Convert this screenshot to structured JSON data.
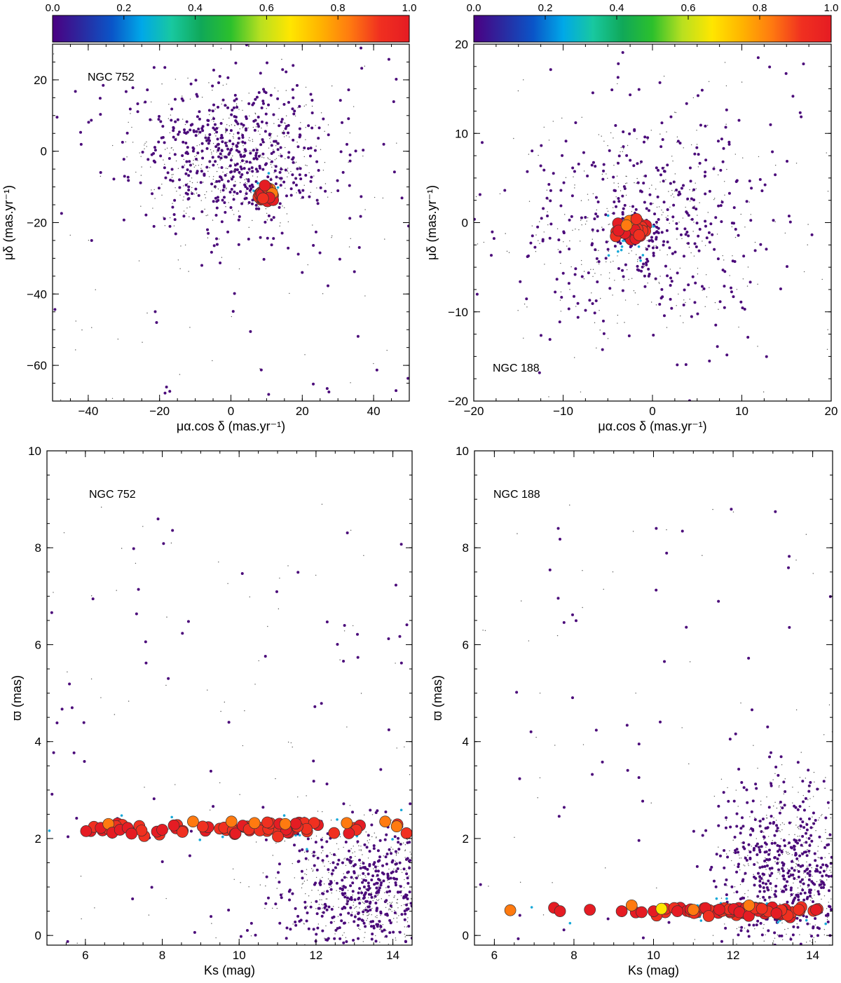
{
  "figure": {
    "colorbar": {
      "ticks": [
        "0.0",
        "0.2",
        "0.4",
        "0.6",
        "0.8",
        "1.0"
      ],
      "tick_values": [
        0.0,
        0.2,
        0.4,
        0.6,
        0.8,
        1.0
      ],
      "colors": [
        "#4b0082",
        "#2a2aa0",
        "#0a55c8",
        "#00a8e8",
        "#18c8a0",
        "#10a858",
        "#2cc02c",
        "#b8e020",
        "#ffe600",
        "#ffb400",
        "#ff7a10",
        "#f03020",
        "#e51c23"
      ]
    }
  },
  "chart_data": [
    {
      "id": "pm_752",
      "type": "scatter",
      "title": "NGC 752",
      "xlabel": "μα.cos δ (mas.yr⁻¹)",
      "ylabel": "μδ (mas.yr⁻¹)",
      "xlim": [
        -50,
        50
      ],
      "ylim": [
        -70,
        30
      ],
      "xticks": [
        -40,
        -20,
        0,
        20,
        40
      ],
      "yticks": [
        -60,
        -40,
        -20,
        0,
        20
      ],
      "xtick_labels": [
        "−40",
        "−20",
        "0",
        "20",
        "40"
      ],
      "ytick_labels": [
        "−60",
        "−40",
        "−20",
        "0",
        "20"
      ],
      "field": {
        "center": [
          0,
          -2
        ],
        "spread": [
          14,
          10
        ],
        "count": 900,
        "outlier_count": 120
      },
      "cluster": {
        "center": [
          9.8,
          -11.8
        ],
        "spread": [
          1.2,
          0.9
        ],
        "count": 22
      },
      "members": [
        {
          "x": 9.2,
          "y": -11.0,
          "p": 1.0
        },
        {
          "x": 10.4,
          "y": -12.3,
          "p": 1.0
        },
        {
          "x": 9.8,
          "y": -12.8,
          "p": 0.95
        },
        {
          "x": 11.0,
          "y": -10.6,
          "p": 0.85
        },
        {
          "x": 8.6,
          "y": -12.1,
          "p": 1.0
        },
        {
          "x": 10.1,
          "y": -10.2,
          "p": 0.9
        },
        {
          "x": 11.6,
          "y": -11.8,
          "p": 0.8
        },
        {
          "x": 9.5,
          "y": -9.6,
          "p": 1.0
        },
        {
          "x": 10.8,
          "y": -13.0,
          "p": 1.0
        },
        {
          "x": 9.0,
          "y": -13.2,
          "p": 0.92
        }
      ]
    },
    {
      "id": "pm_188",
      "type": "scatter",
      "title": "NGC 188",
      "xlabel": "μα.cos δ (mas.yr⁻¹)",
      "ylabel": "μδ (mas.yr⁻¹)",
      "xlim": [
        -20,
        20
      ],
      "ylim": [
        -20,
        20
      ],
      "xticks": [
        -20,
        -10,
        0,
        10,
        20
      ],
      "yticks": [
        -20,
        -10,
        0,
        10,
        20
      ],
      "xtick_labels": [
        "−20",
        "−10",
        "0",
        "10",
        "20"
      ],
      "ytick_labels": [
        "−20",
        "−10",
        "0",
        "10",
        "20"
      ],
      "field": {
        "center": [
          -1,
          0
        ],
        "spread": [
          7,
          6
        ],
        "count": 700,
        "outlier_count": 60
      },
      "cluster": {
        "center": [
          -2.3,
          -1.0
        ],
        "spread": [
          0.9,
          0.6
        ],
        "count": 26
      },
      "members": [
        {
          "x": -2.0,
          "y": -0.8,
          "p": 1.0
        },
        {
          "x": -3.1,
          "y": -1.2,
          "p": 1.0
        },
        {
          "x": -1.5,
          "y": -1.4,
          "p": 0.95
        },
        {
          "x": -2.6,
          "y": 0.2,
          "p": 0.85
        },
        {
          "x": -3.8,
          "y": -0.9,
          "p": 1.0
        },
        {
          "x": -2.9,
          "y": -0.3,
          "p": 0.82
        },
        {
          "x": -1.8,
          "y": 0.4,
          "p": 0.9
        }
      ]
    },
    {
      "id": "plx_752",
      "type": "scatter",
      "title": "NGC 752",
      "xlabel": "Ks (mag)",
      "ylabel": "ϖ (mas)",
      "xlim": [
        5,
        14.5
      ],
      "ylim": [
        -0.2,
        10
      ],
      "xticks": [
        6,
        8,
        10,
        12,
        14
      ],
      "yticks": [
        0,
        2,
        4,
        6,
        8,
        10
      ],
      "xtick_labels": [
        "6",
        "8",
        "10",
        "12",
        "14"
      ],
      "ytick_labels": [
        "0",
        "2",
        "4",
        "6",
        "8",
        "10"
      ],
      "field": {
        "center": [
          13.5,
          0.9
        ],
        "spread": [
          1.2,
          0.7
        ],
        "count": 900,
        "outlier_count": 160
      },
      "cluster": {
        "center": [
          10.2,
          2.2
        ],
        "spread": [
          2.3,
          0.07
        ],
        "count": 70
      },
      "members": [
        {
          "x": 6.4,
          "y": 2.22,
          "p": 1.0
        },
        {
          "x": 6.6,
          "y": 2.3,
          "p": 0.85
        },
        {
          "x": 6.7,
          "y": 2.12,
          "p": 1.0
        },
        {
          "x": 6.9,
          "y": 2.18,
          "p": 1.0
        },
        {
          "x": 7.1,
          "y": 2.22,
          "p": 1.0
        },
        {
          "x": 7.2,
          "y": 2.1,
          "p": 1.0
        },
        {
          "x": 8.0,
          "y": 2.18,
          "p": 1.0
        },
        {
          "x": 8.3,
          "y": 2.27,
          "p": 1.0
        },
        {
          "x": 8.8,
          "y": 2.35,
          "p": 0.85
        },
        {
          "x": 9.8,
          "y": 2.35,
          "p": 0.85
        },
        {
          "x": 10.4,
          "y": 2.32,
          "p": 0.85
        },
        {
          "x": 11.2,
          "y": 2.3,
          "p": 0.85
        },
        {
          "x": 12.8,
          "y": 2.32,
          "p": 0.85
        },
        {
          "x": 13.8,
          "y": 2.35,
          "p": 0.85
        },
        {
          "x": 14.1,
          "y": 2.25,
          "p": 0.85
        }
      ]
    },
    {
      "id": "plx_188",
      "type": "scatter",
      "title": "NGC 188",
      "xlabel": "Ks (mag)",
      "ylabel": "ϖ (mas)",
      "xlim": [
        5.5,
        14.5
      ],
      "ylim": [
        -0.2,
        10
      ],
      "xticks": [
        6,
        8,
        10,
        12,
        14
      ],
      "yticks": [
        0,
        2,
        4,
        6,
        8,
        10
      ],
      "xtick_labels": [
        "6",
        "8",
        "10",
        "12",
        "14"
      ],
      "ytick_labels": [
        "0",
        "2",
        "4",
        "6",
        "8",
        "10"
      ],
      "field": {
        "center": [
          13.4,
          1.3
        ],
        "spread": [
          0.9,
          1.0
        ],
        "count": 900,
        "outlier_count": 110
      },
      "cluster": {
        "center": [
          12.6,
          0.5
        ],
        "spread": [
          1.4,
          0.05
        ],
        "count": 70
      },
      "members": [
        {
          "x": 6.4,
          "y": 0.52,
          "p": 0.85
        },
        {
          "x": 7.5,
          "y": 0.57,
          "p": 1.0
        },
        {
          "x": 7.65,
          "y": 0.5,
          "p": 1.0
        },
        {
          "x": 8.4,
          "y": 0.53,
          "p": 1.0
        },
        {
          "x": 9.2,
          "y": 0.5,
          "p": 1.0
        },
        {
          "x": 9.45,
          "y": 0.62,
          "p": 0.85
        },
        {
          "x": 9.7,
          "y": 0.48,
          "p": 1.0
        },
        {
          "x": 10.0,
          "y": 0.5,
          "p": 1.0
        },
        {
          "x": 10.2,
          "y": 0.55,
          "p": 0.7
        },
        {
          "x": 10.6,
          "y": 0.5,
          "p": 1.0
        },
        {
          "x": 11.0,
          "y": 0.53,
          "p": 0.85
        },
        {
          "x": 12.4,
          "y": 0.62,
          "p": 0.85
        }
      ]
    }
  ]
}
